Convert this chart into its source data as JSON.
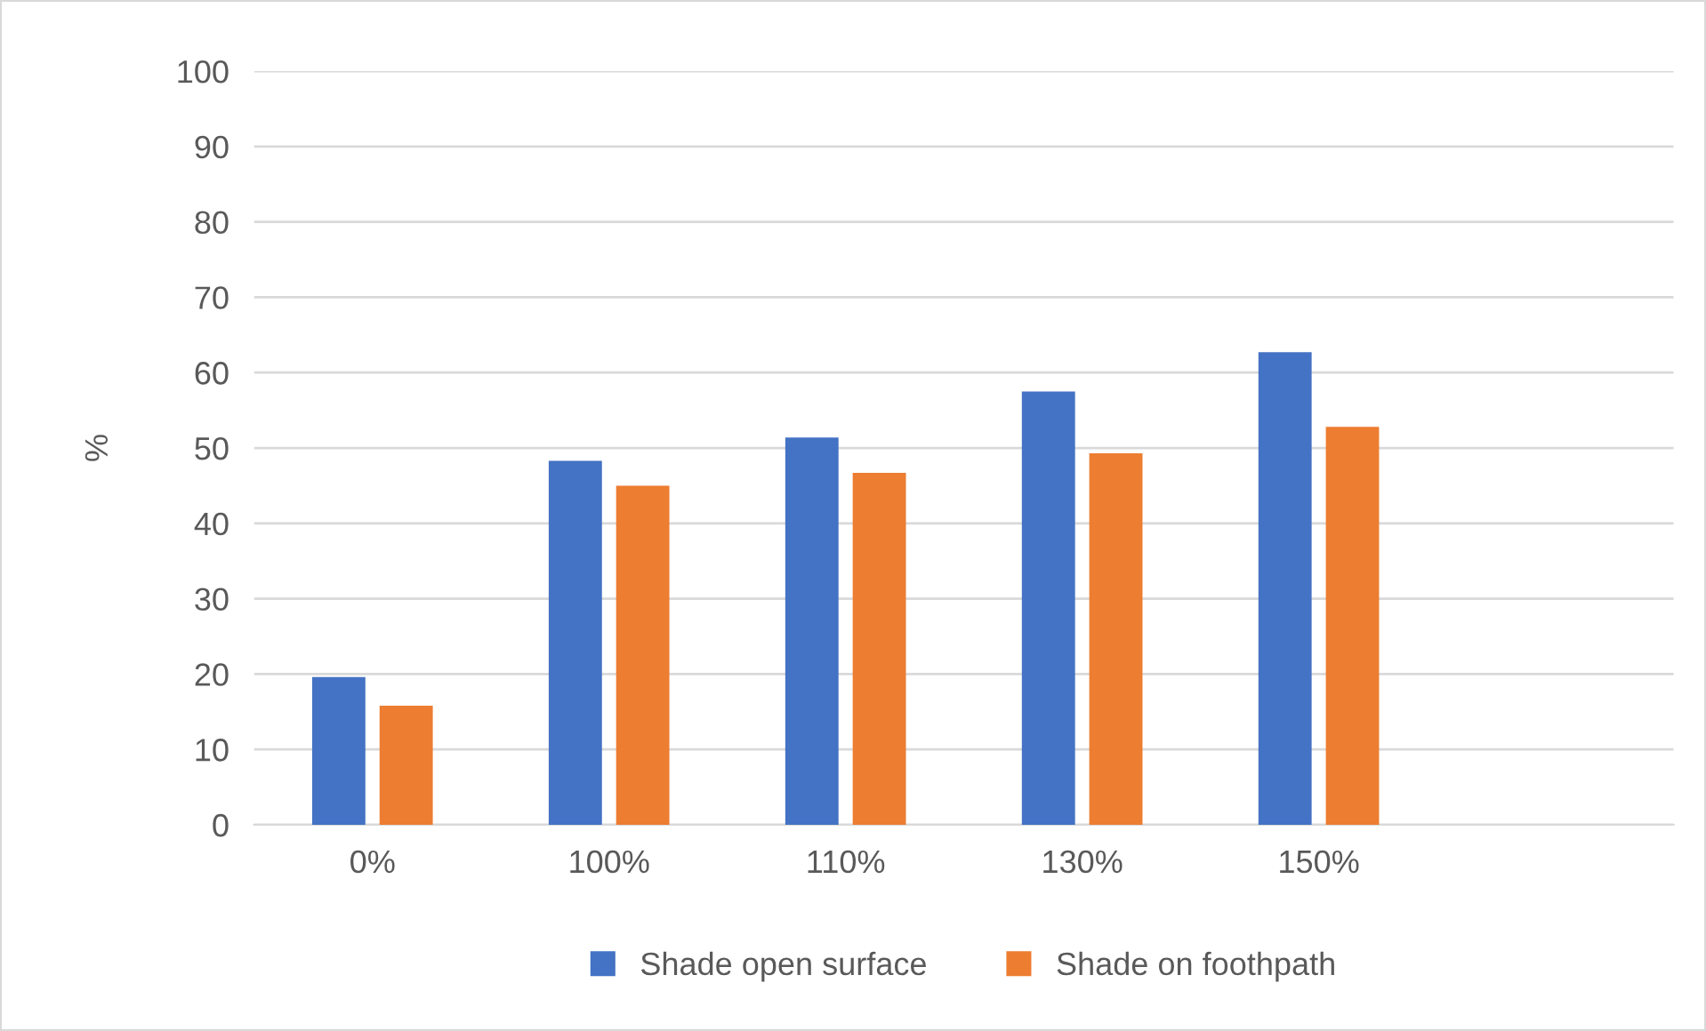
{
  "chart_data": {
    "type": "bar",
    "ylabel": "%",
    "categories": [
      "0%",
      "100%",
      "110%",
      "130%",
      "150%",
      null
    ],
    "series": [
      {
        "name": "Shade open surface",
        "color": "#4472c4",
        "values": [
          19.6,
          48.3,
          51.4,
          57.5,
          62.7,
          null
        ]
      },
      {
        "name": "Shade on foothpath",
        "color": "#ed7d31",
        "values": [
          15.8,
          45.0,
          46.7,
          49.3,
          52.8,
          null
        ]
      }
    ],
    "ylim": [
      0,
      100
    ],
    "yticks": [
      0,
      10,
      20,
      30,
      40,
      50,
      60,
      70,
      80,
      90,
      100
    ],
    "grid": "y",
    "legend": "bottom"
  }
}
